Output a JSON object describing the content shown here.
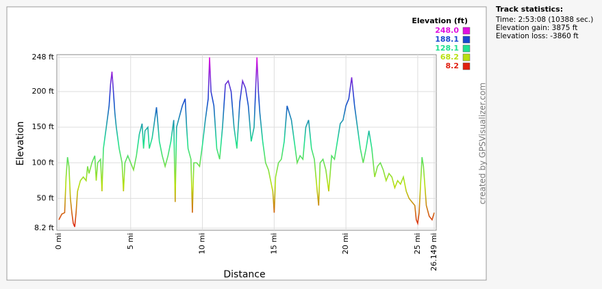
{
  "chart_data": {
    "type": "line",
    "x_label": "Distance",
    "y_label": "Elevation",
    "x": [
      0,
      0.2,
      0.4,
      0.5,
      0.6,
      0.7,
      0.8,
      0.9,
      1.0,
      1.1,
      1.2,
      1.3,
      1.5,
      1.7,
      1.9,
      2.0,
      2.1,
      2.3,
      2.5,
      2.6,
      2.7,
      2.9,
      3.0,
      3.1,
      3.3,
      3.5,
      3.6,
      3.7,
      3.8,
      3.9,
      4.0,
      4.2,
      4.4,
      4.5,
      4.6,
      4.8,
      5.0,
      5.2,
      5.4,
      5.6,
      5.8,
      5.9,
      6.0,
      6.2,
      6.3,
      6.5,
      6.8,
      7.0,
      7.2,
      7.4,
      7.6,
      7.8,
      8.0,
      8.1,
      8.2,
      8.4,
      8.6,
      8.8,
      8.9,
      9.0,
      9.2,
      9.3,
      9.4,
      9.6,
      9.8,
      10.0,
      10.2,
      10.4,
      10.5,
      10.6,
      10.8,
      11.0,
      11.2,
      11.4,
      11.6,
      11.8,
      12.0,
      12.2,
      12.4,
      12.6,
      12.8,
      13.0,
      13.2,
      13.4,
      13.6,
      13.8,
      13.9,
      14.0,
      14.2,
      14.4,
      14.6,
      14.8,
      14.9,
      15.0,
      15.1,
      15.3,
      15.5,
      15.7,
      15.9,
      16.2,
      16.4,
      16.6,
      16.8,
      17.0,
      17.2,
      17.4,
      17.6,
      17.8,
      18.0,
      18.1,
      18.2,
      18.4,
      18.6,
      18.8,
      19.0,
      19.2,
      19.4,
      19.6,
      19.8,
      20.0,
      20.2,
      20.4,
      20.6,
      20.8,
      21.0,
      21.2,
      21.4,
      21.6,
      21.8,
      22.0,
      22.2,
      22.4,
      22.6,
      22.8,
      23.0,
      23.2,
      23.4,
      23.6,
      23.8,
      24.0,
      24.2,
      24.4,
      24.6,
      24.8,
      24.9,
      25.0,
      25.1,
      25.2,
      25.3,
      25.4,
      25.6,
      25.8,
      26.0,
      26.149
    ],
    "values": [
      20,
      28,
      30,
      80,
      108,
      95,
      50,
      30,
      15,
      10,
      30,
      60,
      75,
      80,
      75,
      95,
      85,
      100,
      110,
      75,
      100,
      105,
      60,
      120,
      150,
      180,
      210,
      228,
      200,
      170,
      150,
      120,
      100,
      60,
      100,
      110,
      100,
      90,
      110,
      140,
      155,
      120,
      145,
      150,
      120,
      135,
      178,
      130,
      110,
      95,
      110,
      130,
      160,
      45,
      150,
      165,
      180,
      190,
      150,
      120,
      105,
      30,
      100,
      100,
      95,
      125,
      160,
      190,
      248,
      200,
      180,
      120,
      105,
      150,
      210,
      215,
      200,
      150,
      120,
      185,
      215,
      205,
      180,
      130,
      150,
      248,
      200,
      170,
      130,
      100,
      90,
      70,
      60,
      30,
      80,
      100,
      105,
      130,
      180,
      160,
      130,
      100,
      110,
      105,
      150,
      160,
      120,
      105,
      60,
      40,
      100,
      105,
      90,
      60,
      110,
      105,
      130,
      155,
      160,
      180,
      190,
      220,
      180,
      150,
      120,
      100,
      120,
      145,
      120,
      80,
      95,
      100,
      90,
      75,
      85,
      80,
      65,
      75,
      70,
      80,
      60,
      50,
      45,
      40,
      20,
      15,
      30,
      70,
      108,
      95,
      40,
      25,
      20,
      30
    ],
    "xlim": [
      0,
      26.149
    ],
    "ylim": [
      8.2,
      248
    ],
    "xticks": [
      {
        "value": 0,
        "label": "0 mi"
      },
      {
        "value": 5,
        "label": "5 mi"
      },
      {
        "value": 10,
        "label": "10 mi"
      },
      {
        "value": 15,
        "label": "15 mi"
      },
      {
        "value": 20,
        "label": "20 mi"
      },
      {
        "value": 25,
        "label": "25 mi"
      },
      {
        "value": 26.149,
        "label": "26.149 mi"
      }
    ],
    "yticks": [
      {
        "value": 8.2,
        "label": "8.2 ft"
      },
      {
        "value": 50,
        "label": "50 ft"
      },
      {
        "value": 100,
        "label": "100 ft"
      },
      {
        "value": 150,
        "label": "150 ft"
      },
      {
        "value": 200,
        "label": "200 ft"
      },
      {
        "value": 248,
        "label": "248 ft"
      }
    ],
    "grid": true,
    "legend": {
      "title": "Elevation (ft)",
      "values": [
        248,
        188.1,
        128.1,
        68.2,
        8.2
      ],
      "value_labels": [
        "248.0",
        "188.1",
        "128.1",
        "68.2",
        "8.2"
      ],
      "colors": [
        "#e010e0",
        "#1848d0",
        "#20e090",
        "#b8e010",
        "#e02010"
      ]
    }
  },
  "track_statistics": {
    "title": "Track statistics:",
    "lines": [
      "Time: 2:53:08 (10388 sec.)",
      "Elevation gain: 3875 ft",
      "Elevation loss: -3860 ft"
    ]
  },
  "credit": "created by GPSVisualizer.com"
}
